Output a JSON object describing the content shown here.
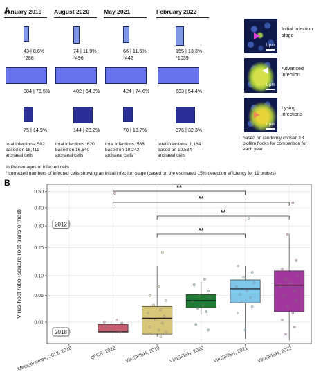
{
  "panelA": {
    "letter": "A",
    "years": [
      {
        "header": "January 2019",
        "rows": [
          {
            "label": "43 | 8.6%",
            "note": "*288",
            "fill": "#7f96e6"
          },
          {
            "label": "384 | 76.5%",
            "fill": "#6673ec"
          },
          {
            "label": "75 | 14.9%",
            "fill": "#2a2e96"
          }
        ],
        "total": [
          "total infections: 502",
          "based on 18,411",
          "archaeal cells"
        ]
      },
      {
        "header": "August 2020",
        "rows": [
          {
            "label": "74 | 11.9%",
            "note": "*496",
            "fill": "#7f96e6"
          },
          {
            "label": "402 | 64.8%",
            "fill": "#6673ec"
          },
          {
            "label": "144 | 23.2%",
            "fill": "#2a2e96"
          }
        ],
        "total": [
          "total infections: 620",
          "based on 16,640",
          "archaeal cells"
        ]
      },
      {
        "header": "May 2021",
        "rows": [
          {
            "label": "66 | 11.6%",
            "note": "*442",
            "fill": "#7f96e6"
          },
          {
            "label": "424 | 74.6%",
            "fill": "#6673ec"
          },
          {
            "label": "78 | 13.7%",
            "fill": "#2a2e96"
          }
        ],
        "total": [
          "total infections: 568",
          "based on 10,242",
          "archaeal cells"
        ]
      },
      {
        "header": "February 2022",
        "rows": [
          {
            "label": "155 | 13.3%",
            "note": "*1039",
            "fill": "#7f96e6"
          },
          {
            "label": "633 | 54.4%",
            "fill": "#6673ec"
          },
          {
            "label": "376 | 32.3%",
            "fill": "#2a2e96"
          }
        ],
        "total": [
          "total infections: 1,164",
          "based on 10,534",
          "archaeal cells"
        ]
      }
    ],
    "micrographs": [
      {
        "caption": [
          "Initial infection",
          "stage"
        ],
        "scale": "1 μm",
        "arrow_color": "#e040d8"
      },
      {
        "caption": [
          "Advanced",
          "infection"
        ],
        "scale": "1 μm",
        "arrow_color": "#ffffff"
      },
      {
        "caption": [
          "Lysing",
          "infections"
        ],
        "scale": "1 μm",
        "arrow_color": "#f0875a"
      }
    ],
    "micro_note": [
      "based on randomly chosen 18",
      "biofilm flocks for comparison for",
      "each year"
    ],
    "footnotes": [
      "% Percentages of infected cells",
      "* corrected numbers of infected cells showing an initial infection stage (based on the estimated 15% detection efficiency for 11 probes)"
    ]
  },
  "chart_data": {
    "letter": "B",
    "type": "box",
    "ylabel": "Virus-host ratio (square root-transformed)",
    "y_scale": "sqrt",
    "ylim": [
      0,
      0.55
    ],
    "yticks": [
      0.01,
      0.05,
      0.1,
      0.2,
      0.3,
      0.4,
      0.5
    ],
    "ytick_labels": [
      "0.01",
      "0.05",
      "0.10",
      "0.20",
      "0.30",
      "0.40",
      "0.50"
    ],
    "grid": true,
    "categories": [
      "Metagenomes, 2012, 2018",
      "qPCR, 2022",
      "ViruSFISH, 2019",
      "ViruSFISH, 2020",
      "ViruSFISH, 2021",
      "ViruSFISH, 2022"
    ],
    "boxes": [
      null,
      {
        "min": 0.003,
        "q1": 0.003,
        "median": 0.003,
        "q3": 0.008,
        "max": 0.012,
        "color": "#c95f6e"
      },
      {
        "min": 0.001,
        "q1": 0.002,
        "median": 0.014,
        "q3": 0.03,
        "max": 0.13,
        "color": "#d8c679"
      },
      {
        "min": 0.018,
        "q1": 0.028,
        "median": 0.04,
        "q3": 0.052,
        "max": 0.082,
        "color": "#1f7a32"
      },
      {
        "min": 0.0005,
        "q1": 0.036,
        "median": 0.065,
        "q3": 0.088,
        "max": 0.13,
        "color": "#7fc8ec"
      },
      {
        "min": 0.0002,
        "q1": 0.022,
        "median": 0.074,
        "q3": 0.115,
        "max": 0.26,
        "color": "#a2389e"
      }
    ],
    "points": [
      {
        "cat": 0,
        "y": 0.31,
        "jit": 0.0
      },
      {
        "cat": 0,
        "y": 0.003,
        "jit": 0.0
      },
      {
        "cat": 1,
        "y": 0.49,
        "jit": 0.05
      },
      {
        "cat": 1,
        "y": 0.012,
        "jit": 0.1
      },
      {
        "cat": 1,
        "y": 0.006,
        "jit": -0.2
      },
      {
        "cat": 1,
        "y": 0.009,
        "jit": 0.25
      },
      {
        "cat": 1,
        "y": 0.004,
        "jit": -0.05
      },
      {
        "cat": 1,
        "y": 0.01,
        "jit": -0.25
      },
      {
        "cat": 1,
        "y": 0.003,
        "jit": 0.2
      },
      {
        "cat": 2,
        "y": 0.18,
        "jit": 0.15
      },
      {
        "cat": 2,
        "y": 0.07,
        "jit": 0.05
      },
      {
        "cat": 2,
        "y": 0.05,
        "jit": -0.2
      },
      {
        "cat": 2,
        "y": 0.04,
        "jit": 0.25
      },
      {
        "cat": 2,
        "y": 0.032,
        "jit": -0.1
      },
      {
        "cat": 2,
        "y": 0.025,
        "jit": 0.1
      },
      {
        "cat": 2,
        "y": 0.02,
        "jit": -0.25
      },
      {
        "cat": 2,
        "y": 0.016,
        "jit": 0.2
      },
      {
        "cat": 2,
        "y": 0.012,
        "jit": -0.05
      },
      {
        "cat": 2,
        "y": 0.009,
        "jit": 0.15
      },
      {
        "cat": 2,
        "y": 0.006,
        "jit": -0.2
      },
      {
        "cat": 2,
        "y": 0.004,
        "jit": 0.05
      },
      {
        "cat": 2,
        "y": 0.003,
        "jit": 0.25
      },
      {
        "cat": 2,
        "y": 0.002,
        "jit": -0.15
      },
      {
        "cat": 2,
        "y": 0.001,
        "jit": 0.1
      },
      {
        "cat": 3,
        "y": 0.09,
        "jit": 0.1
      },
      {
        "cat": 3,
        "y": 0.075,
        "jit": -0.2
      },
      {
        "cat": 3,
        "y": 0.06,
        "jit": 0.2
      },
      {
        "cat": 3,
        "y": 0.05,
        "jit": -0.05
      },
      {
        "cat": 3,
        "y": 0.045,
        "jit": 0.25
      },
      {
        "cat": 3,
        "y": 0.038,
        "jit": -0.25
      },
      {
        "cat": 3,
        "y": 0.032,
        "jit": 0.05
      },
      {
        "cat": 3,
        "y": 0.027,
        "jit": -0.1
      },
      {
        "cat": 3,
        "y": 0.022,
        "jit": 0.15
      },
      {
        "cat": 3,
        "y": 0.008,
        "jit": -0.15
      },
      {
        "cat": 3,
        "y": 0.004,
        "jit": 0.2
      },
      {
        "cat": 4,
        "y": 0.34,
        "jit": 0.1
      },
      {
        "cat": 4,
        "y": 0.13,
        "jit": -0.2
      },
      {
        "cat": 4,
        "y": 0.11,
        "jit": 0.2
      },
      {
        "cat": 4,
        "y": 0.095,
        "jit": -0.05
      },
      {
        "cat": 4,
        "y": 0.08,
        "jit": 0.25
      },
      {
        "cat": 4,
        "y": 0.07,
        "jit": -0.25
      },
      {
        "cat": 4,
        "y": 0.06,
        "jit": 0.05
      },
      {
        "cat": 4,
        "y": 0.052,
        "jit": -0.15
      },
      {
        "cat": 4,
        "y": 0.045,
        "jit": 0.15
      },
      {
        "cat": 4,
        "y": 0.038,
        "jit": -0.1
      },
      {
        "cat": 4,
        "y": 0.03,
        "jit": 0.2
      },
      {
        "cat": 4,
        "y": 0.02,
        "jit": -0.2
      },
      {
        "cat": 4,
        "y": 0.004,
        "jit": 0.0
      },
      {
        "cat": 5,
        "y": 0.43,
        "jit": 0.1
      },
      {
        "cat": 5,
        "y": 0.26,
        "jit": -0.05
      },
      {
        "cat": 5,
        "y": 0.15,
        "jit": 0.2
      },
      {
        "cat": 5,
        "y": 0.12,
        "jit": -0.2
      },
      {
        "cat": 5,
        "y": 0.1,
        "jit": 0.25
      },
      {
        "cat": 5,
        "y": 0.09,
        "jit": -0.1
      },
      {
        "cat": 5,
        "y": 0.08,
        "jit": 0.05
      },
      {
        "cat": 5,
        "y": 0.07,
        "jit": -0.25
      },
      {
        "cat": 5,
        "y": 0.06,
        "jit": 0.15
      },
      {
        "cat": 5,
        "y": 0.05,
        "jit": -0.15
      },
      {
        "cat": 5,
        "y": 0.04,
        "jit": 0.2
      },
      {
        "cat": 5,
        "y": 0.03,
        "jit": -0.05
      },
      {
        "cat": 5,
        "y": 0.02,
        "jit": 0.1
      },
      {
        "cat": 5,
        "y": 0.012,
        "jit": -0.2
      },
      {
        "cat": 5,
        "y": 0.006,
        "jit": 0.15
      },
      {
        "cat": 5,
        "y": 0.002,
        "jit": -0.1
      }
    ],
    "year_labels": [
      {
        "text": "2012",
        "y": 0.31
      },
      {
        "text": "2018",
        "y": 0.003
      }
    ],
    "significance": [
      {
        "from": 1,
        "to": 4,
        "label": "**"
      },
      {
        "from": 1,
        "to": 5,
        "label": "**"
      },
      {
        "from": 2,
        "to": 5,
        "label": "**"
      },
      {
        "from": 2,
        "to": 4,
        "label": "**"
      }
    ]
  }
}
